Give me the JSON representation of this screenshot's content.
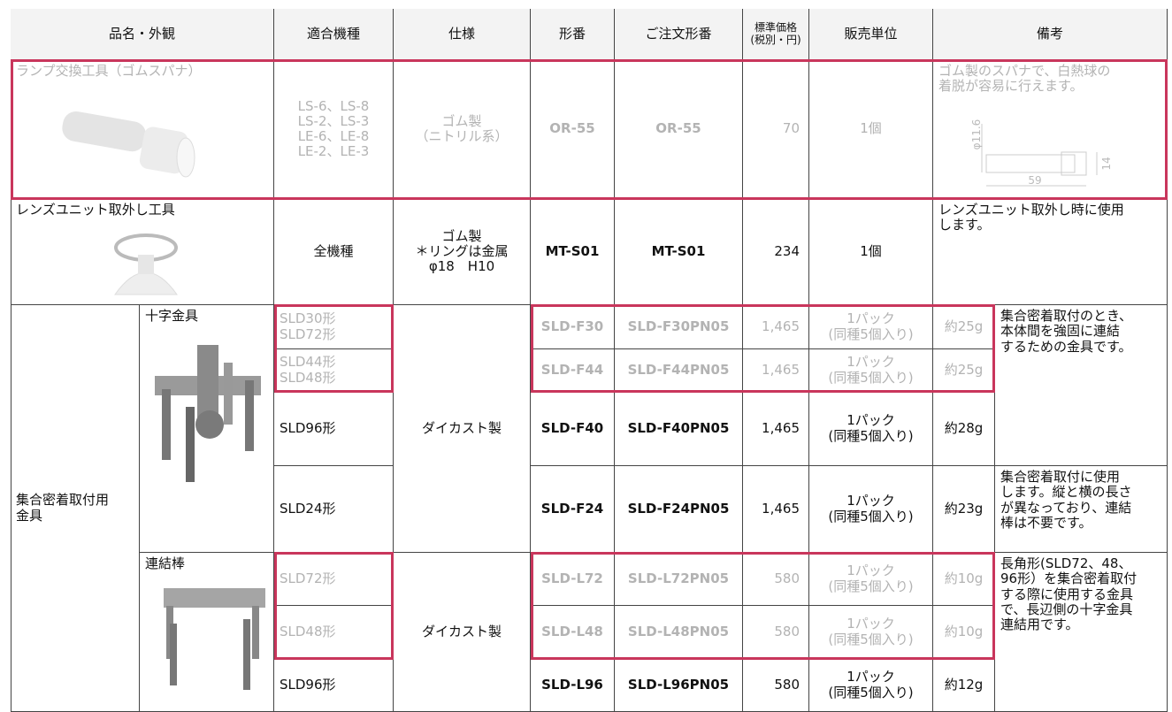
{
  "header": [
    "品名・外観",
    "適合機種",
    "仕様",
    "形番",
    "ご注文形番",
    "標準価格\n(税別・円)",
    "販売単位",
    "備考"
  ],
  "rows": [
    {
      "name": "ランプ交換工具（ゴムスパナ）",
      "models": "LS-6、LS-8\nLS-2、LS-3\nLE-6、LE-8\nLE-2、LE-3",
      "spec": "ゴム製\n（ニトリル系）",
      "type": "OR-55",
      "order": "OR-55",
      "price": "70",
      "unit": "1個",
      "note": "ゴム製のスパナで、白熱球の\n着脱が容易に行えます。",
      "dims": [
        "φ11.6",
        "14",
        "59"
      ]
    },
    {
      "name": "レンズユニット取外し工具",
      "models": "全機種",
      "spec": "ゴム製\n＊リングは金属\nφ18　H10",
      "type": "MT-S01",
      "order": "MT-S01",
      "price": "234",
      "unit": "1個",
      "note": "レンズユニット取外し時に使用\nします。"
    }
  ],
  "group": {
    "name": "集合密着取付用\n金具",
    "subgroups": [
      {
        "name": "十字金具",
        "spec": "ダイカスト製",
        "items": [
          {
            "models": "SLD30形\nSLD72形",
            "type": "SLD-F30",
            "order": "SLD-F30PN05",
            "price": "1,465",
            "unit": "1パック\n(同種5個入り)",
            "weight": "約25g"
          },
          {
            "models": "SLD44形\nSLD48形",
            "type": "SLD-F44",
            "order": "SLD-F44PN05",
            "price": "1,465",
            "unit": "1パック\n(同種5個入り)",
            "weight": "約25g"
          },
          {
            "models": "SLD96形",
            "type": "SLD-F40",
            "order": "SLD-F40PN05",
            "price": "1,465",
            "unit": "1パック\n(同種5個入り)",
            "weight": "約28g"
          },
          {
            "models": "SLD24形",
            "type": "SLD-F24",
            "order": "SLD-F24PN05",
            "price": "1,465",
            "unit": "1パック\n(同種5個入り)",
            "weight": "約23g"
          }
        ]
      },
      {
        "name": "連結棒",
        "spec": "ダイカスト製",
        "items": [
          {
            "models": "SLD72形",
            "type": "SLD-L72",
            "order": "SLD-L72PN05",
            "price": "580",
            "unit": "1パック\n(同種5個入り)",
            "weight": "約10g"
          },
          {
            "models": "SLD48形",
            "type": "SLD-L48",
            "order": "SLD-L48PN05",
            "price": "580",
            "unit": "1パック\n(同種5個入り)",
            "weight": "約10g"
          },
          {
            "models": "SLD96形",
            "type": "SLD-L96",
            "order": "SLD-L96PN05",
            "price": "580",
            "unit": "1パック\n(同種5個入り)",
            "weight": "約12g"
          }
        ]
      }
    ],
    "notes": [
      "集合密着取付のとき、\n本体間を強固に連結\nするための金具です。",
      "集合密着取付に使用\nします。縦と横の長さ\nが異なっており、連結\n棒は不要です。",
      "長角形(SLD72、48、\n96形）を集合密着取付\nする際に使用する金具\nで、長辺側の十字金具\n連結用です。"
    ]
  }
}
